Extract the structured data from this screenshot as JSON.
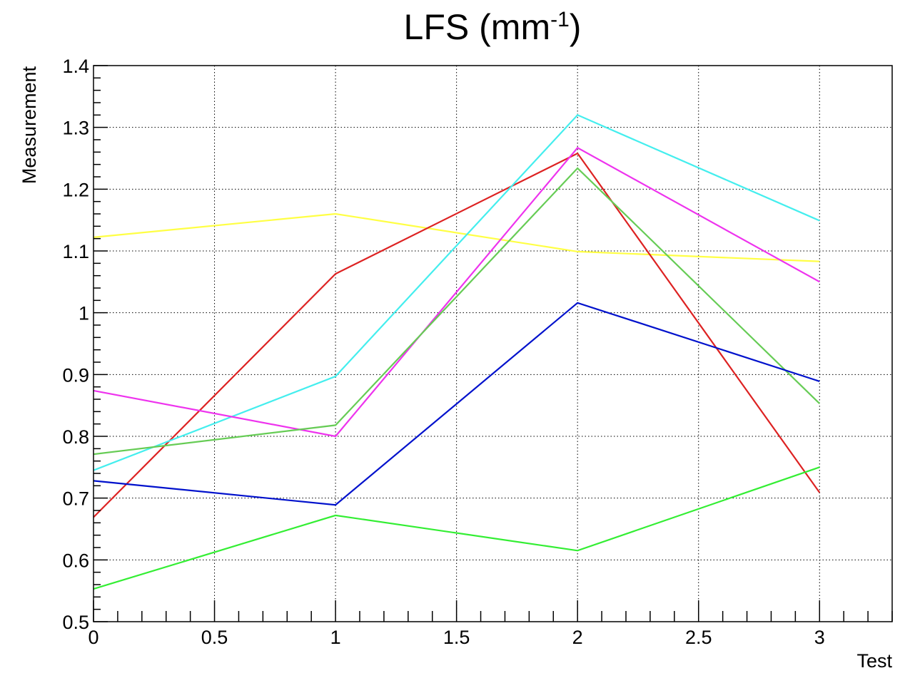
{
  "chart_data": {
    "type": "line",
    "title": "LFS (mm",
    "title_superscript": "-1",
    "title_suffix": ")",
    "xlabel": "Test",
    "ylabel": "Measurement",
    "xlim": [
      0,
      3.3
    ],
    "ylim": [
      0.5,
      1.4
    ],
    "x_ticks": [
      {
        "value": 0,
        "label": "0"
      },
      {
        "value": 0.5,
        "label": "0.5"
      },
      {
        "value": 1,
        "label": "1"
      },
      {
        "value": 1.5,
        "label": "1.5"
      },
      {
        "value": 2,
        "label": "2"
      },
      {
        "value": 2.5,
        "label": "2.5"
      },
      {
        "value": 3,
        "label": "3"
      }
    ],
    "y_ticks": [
      {
        "value": 0.5,
        "label": "0.5"
      },
      {
        "value": 0.6,
        "label": "0.6"
      },
      {
        "value": 0.7,
        "label": "0.7"
      },
      {
        "value": 0.8,
        "label": "0.8"
      },
      {
        "value": 0.9,
        "label": "0.9"
      },
      {
        "value": 1.0,
        "label": "1"
      },
      {
        "value": 1.1,
        "label": "1.1"
      },
      {
        "value": 1.2,
        "label": "1.2"
      },
      {
        "value": 1.3,
        "label": "1.3"
      },
      {
        "value": 1.4,
        "label": "1.4"
      }
    ],
    "grid": true,
    "x": [
      0,
      1,
      2,
      3
    ],
    "series": [
      {
        "color": "#ffff44",
        "values": [
          1.122,
          1.16,
          1.099,
          1.083
        ]
      },
      {
        "color": "#dd2222",
        "values": [
          0.669,
          1.063,
          1.258,
          0.709
        ]
      },
      {
        "color": "#44eeee",
        "values": [
          0.745,
          0.897,
          1.32,
          1.149
        ]
      },
      {
        "color": "#ee33ee",
        "values": [
          0.874,
          0.8,
          1.267,
          1.05
        ]
      },
      {
        "color": "#66cc55",
        "values": [
          0.771,
          0.818,
          1.234,
          0.853
        ]
      },
      {
        "color": "#0011cc",
        "values": [
          0.728,
          0.689,
          1.016,
          0.889
        ]
      },
      {
        "color": "#33ee33",
        "values": [
          0.553,
          0.672,
          0.615,
          0.75
        ]
      }
    ]
  }
}
